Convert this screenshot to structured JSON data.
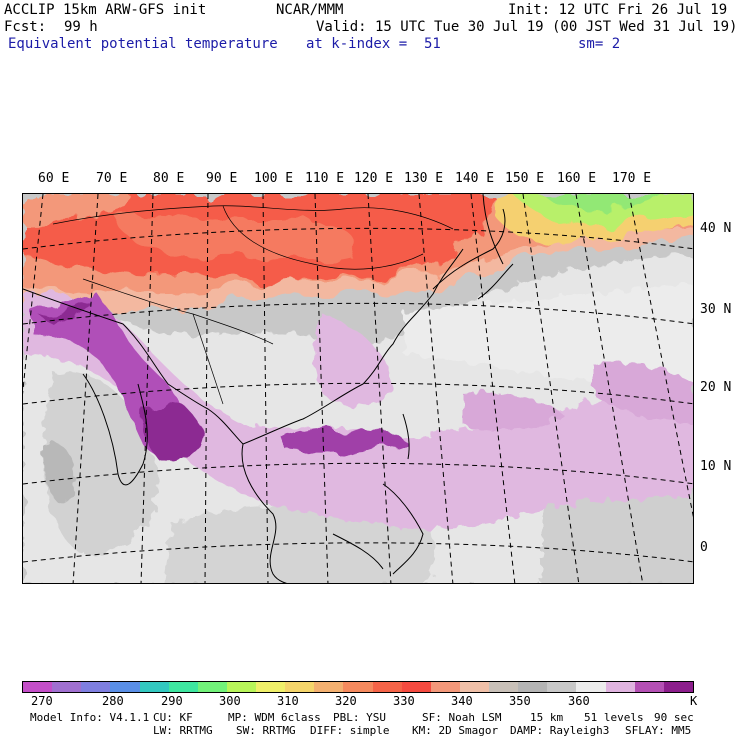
{
  "header": {
    "model": "ACCLIP 15km ARW-GFS init",
    "center": "NCAR/MMM",
    "init": "Init: 12 UTC Fri 26 Jul 19",
    "fcst_label": "Fcst:",
    "fcst_value": "99 h",
    "valid": "Valid: 15 UTC Tue 30 Jul 19 (00 JST Wed 31 Jul 19)",
    "field": "Equivalent potential temperature",
    "level": "at k-index =  51",
    "smoothing": "sm= 2"
  },
  "map": {
    "lon_labels": [
      "60 E",
      "70 E",
      "80 E",
      "90 E",
      "100 E",
      "110 E",
      "120 E",
      "130 E",
      "140 E",
      "150 E",
      "160 E",
      "170 E"
    ],
    "lat_labels": [
      "40 N",
      "30 N",
      "20 N",
      "10 N",
      "0"
    ]
  },
  "colorbar": {
    "colors": [
      "#c44fc8",
      "#a070d0",
      "#7f7fe0",
      "#5a8fe6",
      "#33c8c0",
      "#3ee6a0",
      "#72f27a",
      "#b8f55a",
      "#f0f06a",
      "#f5d56b",
      "#f3b070",
      "#f58a5e",
      "#f56448",
      "#f54b40",
      "#f3987a",
      "#f0c0a8",
      "#c8c0b8",
      "#b4b4b4",
      "#c8c8c8",
      "#ececec",
      "#e0b4e0",
      "#b450b4",
      "#8c1e8c"
    ],
    "labels": [
      "270",
      "280",
      "290",
      "300",
      "310",
      "320",
      "330",
      "340",
      "350",
      "360",
      "K"
    ]
  },
  "footer": {
    "line1": [
      "Model Info: V4.1.1",
      "CU: KF",
      "MP: WDM 6class",
      "PBL: YSU",
      "SF: Noah LSM",
      "15 km",
      "51 levels",
      "90 sec"
    ],
    "line2": [
      "LW: RRTMG",
      "SW: RRTMG",
      "DIFF: simple",
      "KM: 2D Smagor",
      "DAMP: Rayleigh3",
      "SFLAY: MM5"
    ]
  }
}
